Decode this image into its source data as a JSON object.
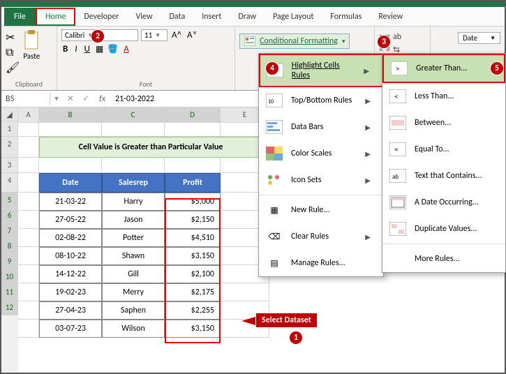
{
  "tabs": {
    "file": "File",
    "home": "Home",
    "developer": "Developer",
    "view": "View",
    "data": "Data",
    "insert": "Insert",
    "draw": "Draw",
    "pagelayout": "Page Layout",
    "formulas": "Formulas",
    "review": "Review"
  },
  "ribbon": {
    "paste": "Paste",
    "clipboard": "Clipboard",
    "fontname": "Calibri",
    "fontsize": "11",
    "fontgroup": "Font",
    "cond": "Conditional Formatting",
    "dateLabel": "Date"
  },
  "fbar": {
    "name": "B5",
    "fx": "fx",
    "val": "21-03-2022"
  },
  "cols": {
    "a": "A",
    "b": "B",
    "c": "C",
    "d": "D",
    "e": "E"
  },
  "rows": [
    "1",
    "2",
    "3",
    "4",
    "5",
    "6",
    "7",
    "8",
    "9",
    "10",
    "11",
    "12"
  ],
  "banner": "Cell Value is Greater than Particular Value",
  "headers": {
    "date": "Date",
    "rep": "Salesrep",
    "profit": "Profit"
  },
  "data": [
    {
      "date": "21-03-22",
      "rep": "Harry",
      "profit": "$5,000"
    },
    {
      "date": "27-05-22",
      "rep": "Jason",
      "profit": "$2,150"
    },
    {
      "date": "02-08-22",
      "rep": "Potter",
      "profit": "$4,510"
    },
    {
      "date": "08-10-22",
      "rep": "Shawn",
      "profit": "$3,150"
    },
    {
      "date": "14-12-22",
      "rep": "Gill",
      "profit": "$2,100"
    },
    {
      "date": "19-02-23",
      "rep": "Merry",
      "profit": "$2,175"
    },
    {
      "date": "27-04-23",
      "rep": "Saphen",
      "profit": "$2,255"
    },
    {
      "date": "03-07-23",
      "rep": "Wilson",
      "profit": "$3,150"
    }
  ],
  "menu": {
    "highlight": "Highlight Cells Rules",
    "topbottom": "Top/Bottom Rules",
    "databars": "Data Bars",
    "colorscales": "Color Scales",
    "iconsets": "Icon Sets",
    "newrule": "New Rule...",
    "clear": "Clear Rules",
    "manage": "Manage Rules..."
  },
  "submenu": {
    "greater": "Greater Than...",
    "less": "Less Than...",
    "between": "Between...",
    "equal": "Equal To...",
    "contains": "Text that Contains...",
    "dateocc": "A Date Occurring...",
    "dup": "Duplicate Values...",
    "more": "More Rules..."
  },
  "callouts": {
    "selectDataset": "Select Dataset",
    "n1": "1",
    "n2": "2",
    "n3": "3",
    "n4": "4",
    "n5": "5"
  },
  "colors": {
    "accent": "#217346",
    "red": "#e60000",
    "callout": "#c00000",
    "headerBg": "#4472c4",
    "bannerBg": "#e2efda"
  }
}
